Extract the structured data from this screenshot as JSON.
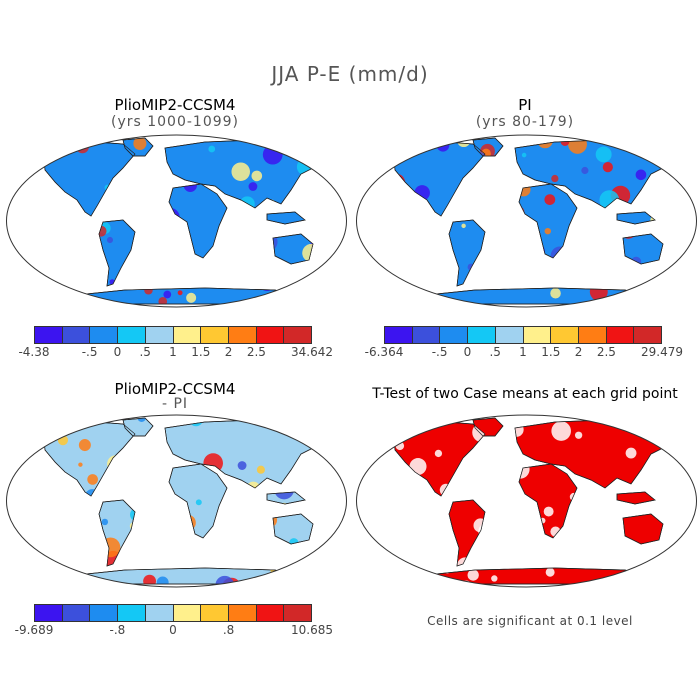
{
  "figure": {
    "title": "JJA P-E (mm/d)"
  },
  "panels": [
    {
      "title": "PlioMIP2-CCSM4",
      "subtitle": "(yrs 1000-1099)",
      "colorbar": {
        "labels": [
          "-4.38",
          "-.5",
          "0",
          ".5",
          "1",
          "1.5",
          "2",
          "2.5",
          "34.642"
        ]
      }
    },
    {
      "title": "PI",
      "subtitle": "(yrs 80-179)",
      "colorbar": {
        "labels": [
          "-6.364",
          "-.5",
          "0",
          ".5",
          "1",
          "1.5",
          "2",
          "2.5",
          "29.479"
        ]
      }
    },
    {
      "title": "PlioMIP2-CCSM4",
      "subtitle": "- PI",
      "colorbar": {
        "labels": [
          "-9.689",
          "-.8",
          "0",
          ".8",
          "10.685"
        ]
      }
    },
    {
      "title": "T-Test of two Case means at each grid point",
      "note": "Cells are significant at 0.1 level"
    }
  ],
  "colors": {
    "scale": [
      "#3c14f0",
      "#3c50dc",
      "#1e8cf0",
      "#14c8f5",
      "#a0d2f0",
      "#fff08c",
      "#ffc832",
      "#ff7d14",
      "#f01414",
      "#d22828"
    ],
    "significance": "#ee0000"
  }
}
